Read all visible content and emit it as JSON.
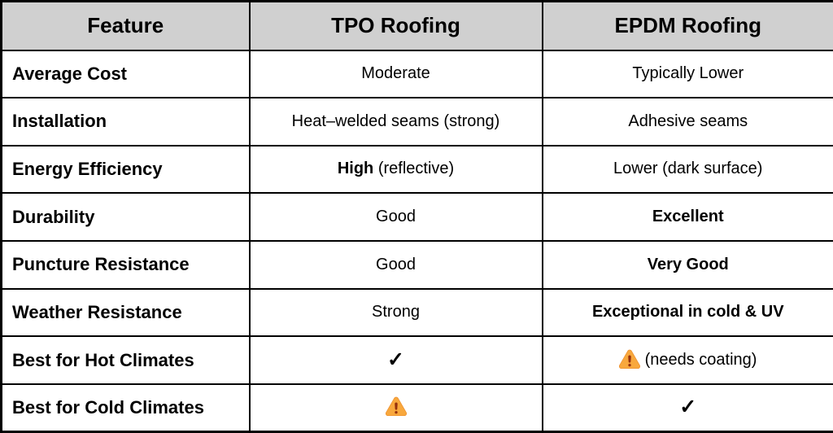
{
  "table": {
    "columns": [
      {
        "label": "Feature"
      },
      {
        "label": "TPO Roofing"
      },
      {
        "label": "EPDM Roofing"
      }
    ],
    "rows": [
      {
        "feature": "Average Cost",
        "tpo": [
          {
            "text": "Moderate"
          }
        ],
        "epdm": [
          {
            "text": "Typically Lower"
          }
        ]
      },
      {
        "feature": "Installation",
        "tpo": [
          {
            "text": "Heat–welded seams (strong)"
          }
        ],
        "epdm": [
          {
            "text": "Adhesive seams"
          }
        ]
      },
      {
        "feature": "Energy Efficiency",
        "tpo": [
          {
            "text": "High",
            "bold": true
          },
          {
            "text": " (reflective)"
          }
        ],
        "epdm": [
          {
            "text": "Lower (dark surface)"
          }
        ]
      },
      {
        "feature": "Durability",
        "tpo": [
          {
            "text": "Good"
          }
        ],
        "epdm": [
          {
            "text": "Excellent",
            "bold": true
          }
        ]
      },
      {
        "feature": "Puncture Resistance",
        "tpo": [
          {
            "text": "Good"
          }
        ],
        "epdm": [
          {
            "text": "Very Good",
            "bold": true
          }
        ]
      },
      {
        "feature": "Weather Resistance",
        "tpo": [
          {
            "text": "Strong"
          }
        ],
        "epdm": [
          {
            "text": "Exceptional in cold & UV",
            "bold": true
          }
        ]
      },
      {
        "feature": "Best for Hot Climates",
        "tpo": [
          {
            "icon": "check"
          }
        ],
        "epdm": [
          {
            "icon": "warning"
          },
          {
            "text": " (needs coating)"
          }
        ]
      },
      {
        "feature": "Best for Cold Climates",
        "tpo": [
          {
            "icon": "warning"
          }
        ],
        "epdm": [
          {
            "icon": "check"
          }
        ]
      }
    ],
    "icons": {
      "check": "✓",
      "warning": "warning-triangle"
    },
    "colors": {
      "header_bg": "#d0d0d0",
      "border": "#000000",
      "text": "#000000",
      "warning_fill": "#f8a83d",
      "warning_edge": "#ed9030",
      "warning_mark": "#96310d"
    }
  },
  "chart_data": {
    "type": "table",
    "title": "",
    "columns": [
      "Feature",
      "TPO Roofing",
      "EPDM Roofing"
    ],
    "rows": [
      [
        "Average Cost",
        "Moderate",
        "Typically Lower"
      ],
      [
        "Installation",
        "Heat–welded seams (strong)",
        "Adhesive seams"
      ],
      [
        "Energy Efficiency",
        "High (reflective)",
        "Lower (dark surface)"
      ],
      [
        "Durability",
        "Good",
        "Excellent"
      ],
      [
        "Puncture Resistance",
        "Good",
        "Very Good"
      ],
      [
        "Weather Resistance",
        "Strong",
        "Exceptional in cold & UV"
      ],
      [
        "Best for Hot Climates",
        "✓",
        "⚠ (needs coating)"
      ],
      [
        "Best for Cold Climates",
        "⚠",
        "✓"
      ]
    ]
  }
}
